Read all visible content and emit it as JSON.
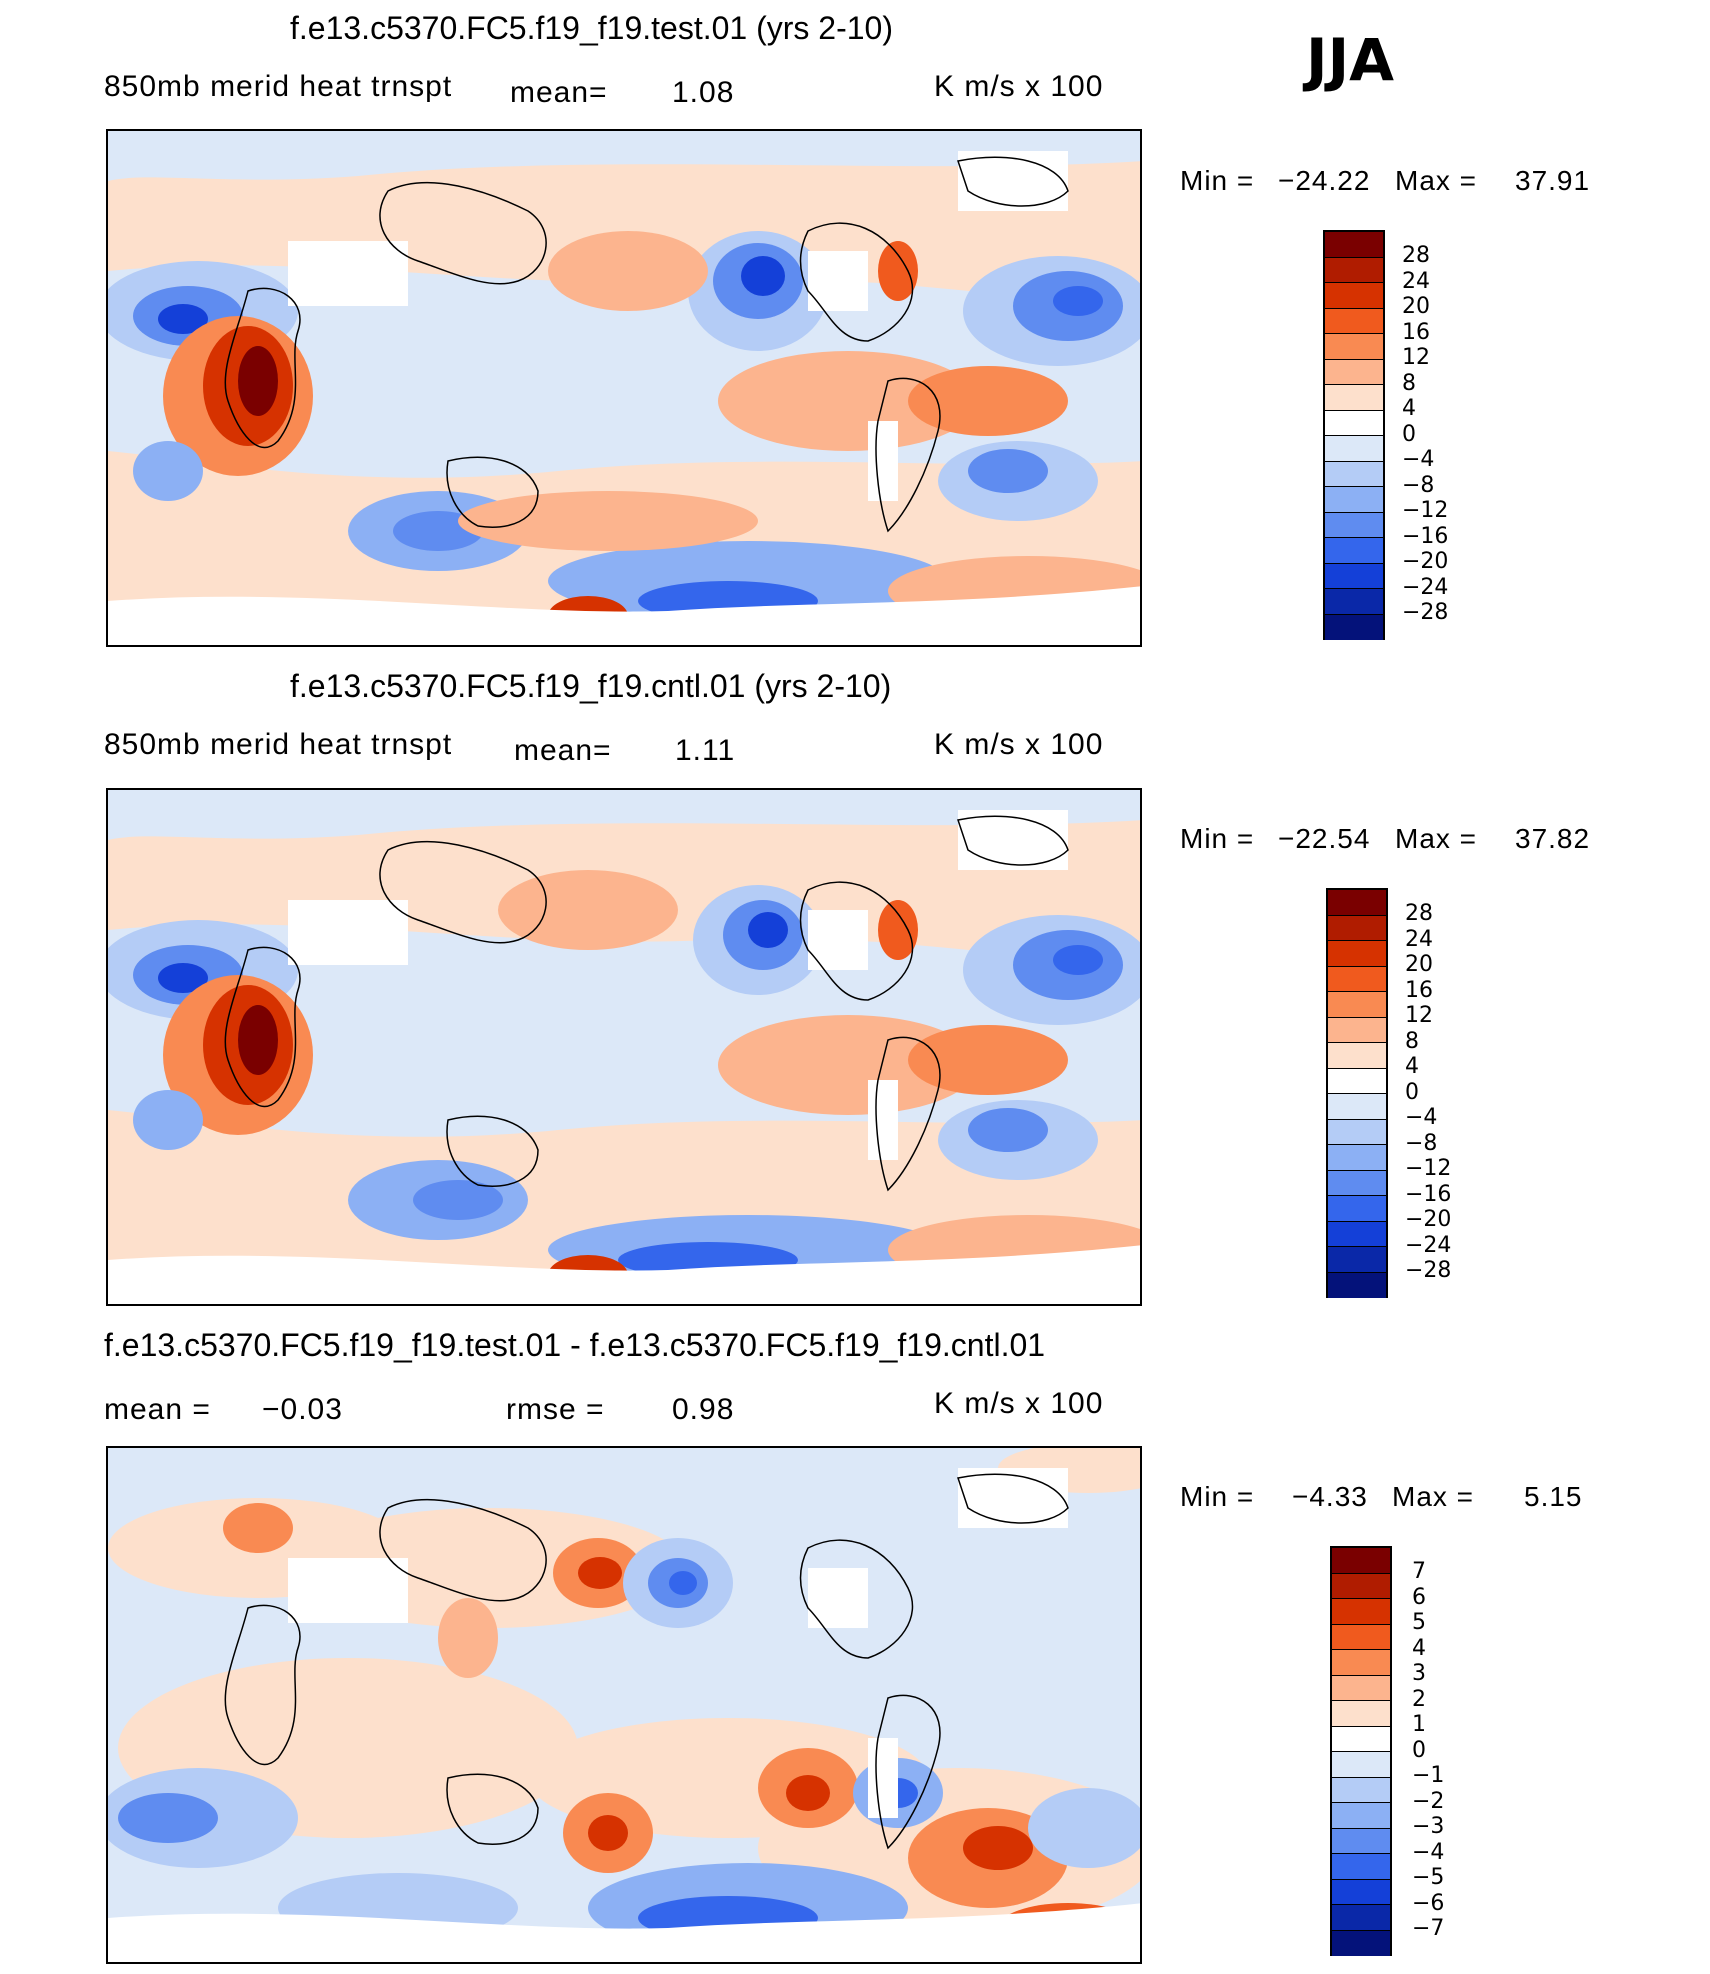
{
  "season": "JJA",
  "panels": [
    {
      "title": "f.e13.c5370.FC5.f19_f19.test.01 (yrs 2-10)",
      "variable": "850mb  merid  heat  trnspt",
      "mean_label": "mean=",
      "mean_value": "1.08",
      "units": "K  m/s  x  100",
      "min_label": "Min  =",
      "min_value": "−24.22",
      "max_label": "Max  =",
      "max_value": "37.91",
      "colorbar": {
        "labels": [
          "28",
          "24",
          "20",
          "16",
          "12",
          "8",
          "4",
          "0",
          "−4",
          "−8",
          "−12",
          "−16",
          "−20",
          "−24",
          "−28"
        ]
      }
    },
    {
      "title": "f.e13.c5370.FC5.f19_f19.cntl.01 (yrs 2-10)",
      "variable": "850mb  merid  heat  trnspt",
      "mean_label": "mean=",
      "mean_value": "1.11",
      "units": "K  m/s  x  100",
      "min_label": "Min  =",
      "min_value": "−22.54",
      "max_label": "Max  =",
      "max_value": "37.82",
      "colorbar": {
        "labels": [
          "28",
          "24",
          "20",
          "16",
          "12",
          "8",
          "4",
          "0",
          "−4",
          "−8",
          "−12",
          "−16",
          "−20",
          "−24",
          "−28"
        ]
      }
    },
    {
      "title": "f.e13.c5370.FC5.f19_f19.test.01 - f.e13.c5370.FC5.f19_f19.cntl.01",
      "mean_label": "mean  =",
      "mean_value": "−0.03",
      "rmse_label": "rmse  =",
      "rmse_value": "0.98",
      "units": "K  m/s  x  100",
      "min_label": "Min  =",
      "min_value": "−4.33",
      "max_label": "Max  =",
      "max_value": "5.15",
      "colorbar": {
        "labels": [
          "7",
          "6",
          "5",
          "4",
          "3",
          "2",
          "1",
          "0",
          "−1",
          "−2",
          "−3",
          "−4",
          "−5",
          "−6",
          "−7"
        ]
      }
    }
  ],
  "colors": {
    "palette": [
      "#7a0000",
      "#b01c00",
      "#d63200",
      "#f05a1e",
      "#f98a52",
      "#fcb48e",
      "#fde0cc",
      "#dce8f8",
      "#b4ccf6",
      "#8cb0f4",
      "#5f8cf0",
      "#3466ec",
      "#1440d8",
      "#0a28a8",
      "#04127a"
    ],
    "land_mask": "#ffffff",
    "coast": "#000000"
  }
}
